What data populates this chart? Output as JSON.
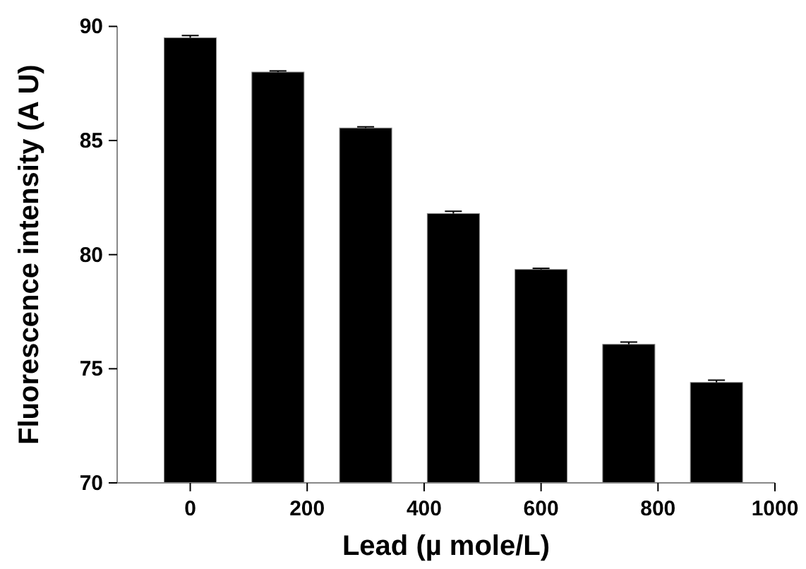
{
  "chart_data": {
    "type": "bar",
    "xlabel": "Lead (µ mole/L)",
    "ylabel": "Fluorescence intensity (A U)",
    "x": [
      0,
      150,
      300,
      450,
      600,
      750,
      900
    ],
    "values": [
      89.5,
      88.0,
      85.55,
      81.8,
      79.35,
      76.07,
      74.4
    ],
    "errors": [
      0.1,
      0.05,
      0.05,
      0.1,
      0.05,
      0.1,
      0.1
    ],
    "color": "#000000",
    "xlim": [
      -125,
      1000
    ],
    "xticks": [
      0,
      200,
      400,
      600,
      800,
      1000
    ],
    "ylim": [
      70,
      90
    ],
    "yticks": [
      70,
      75,
      80,
      85,
      90
    ],
    "grid": false
  }
}
